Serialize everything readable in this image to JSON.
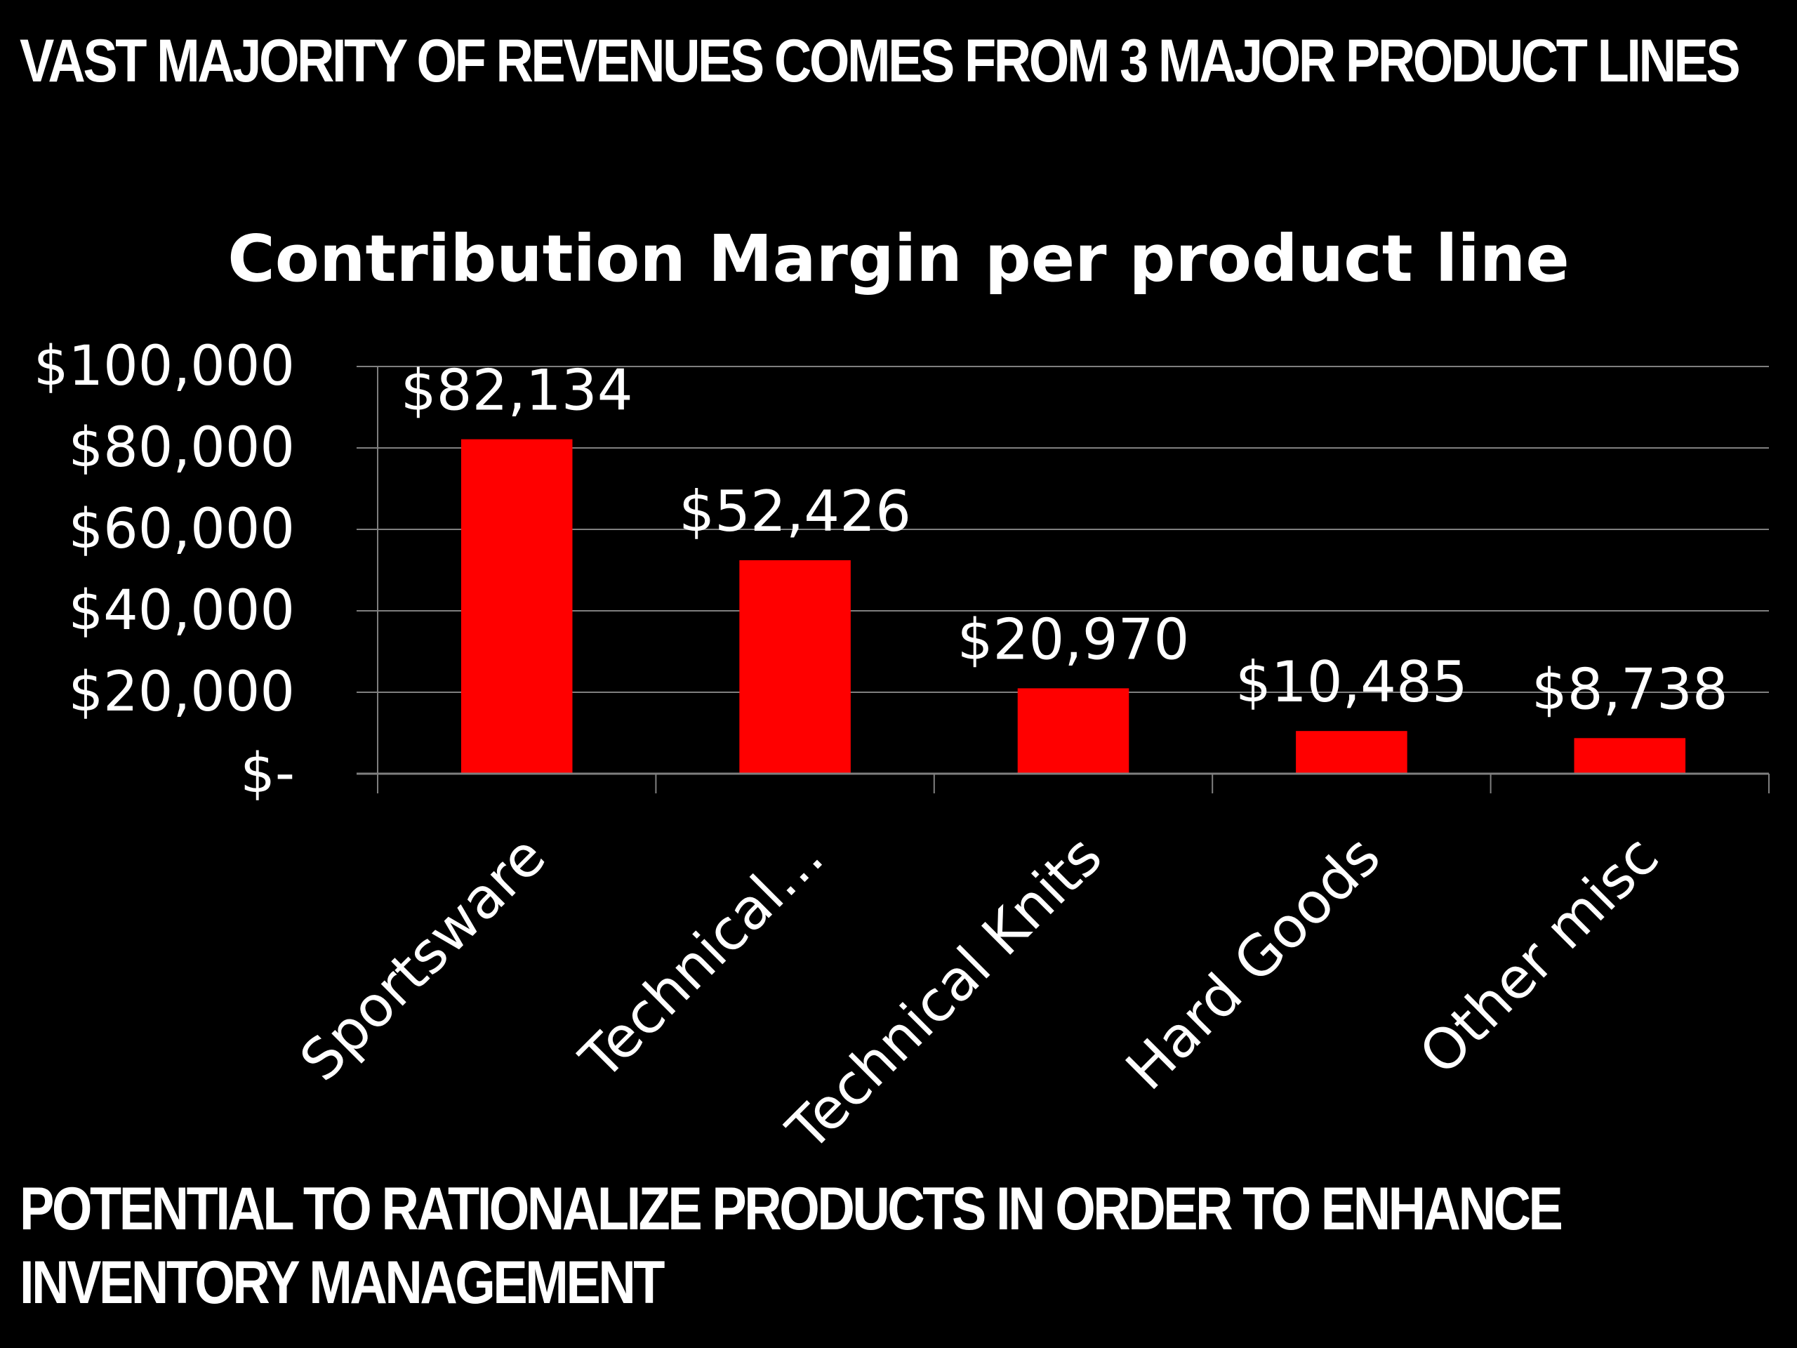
{
  "slide": {
    "headline": "VAST MAJORITY OF REVENUES COMES FROM 3 MAJOR PRODUCT LINES",
    "footer_lines": [
      "POTENTIAL TO RATIONALIZE PRODUCTS IN ORDER TO ENHANCE",
      "INVENTORY MANAGEMENT"
    ]
  },
  "colors": {
    "background": "#000000",
    "bar": "#ff0000",
    "text": "#ffffff",
    "grid": "#7f7f7f"
  },
  "chart_data": {
    "type": "bar",
    "title": "Contribution Margin per product line",
    "categories": [
      "Sportsware",
      "Technical…",
      "Technical Knits",
      "Hard Goods",
      "Other misc"
    ],
    "values": [
      82134,
      52426,
      20970,
      10485,
      8738
    ],
    "value_labels": [
      "$82,134",
      "$52,426",
      "$20,970",
      "$10,485",
      "$8,738"
    ],
    "ylim": [
      0,
      100000
    ],
    "yticks": [
      0,
      20000,
      40000,
      60000,
      80000,
      100000
    ],
    "ytick_labels": [
      "$-",
      "$20,000",
      "$40,000",
      "$60,000",
      "$80,000",
      "$100,000"
    ],
    "grid": true,
    "legend": "none",
    "xlabel": "",
    "ylabel": ""
  }
}
